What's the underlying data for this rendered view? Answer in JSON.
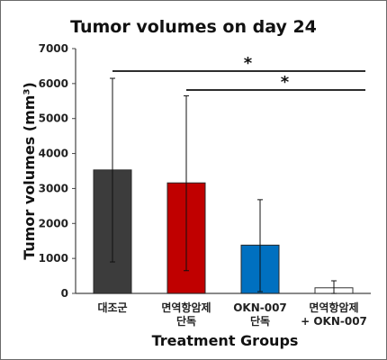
{
  "chart_data": {
    "type": "bar",
    "title": "Tumor volumes on day 24",
    "xlabel": "Treatment Groups",
    "ylabel": "Tumor volumes (mm³)",
    "ylim": [
      0,
      7000
    ],
    "yticks": [
      "0",
      "1000",
      "2000",
      "3000",
      "4000",
      "5000",
      "6000",
      "7000"
    ],
    "categories": [
      [
        "대조군"
      ],
      [
        "면역항암제",
        "단독"
      ],
      [
        "OKN-007",
        "단독"
      ],
      [
        "면역항암제",
        "+ OKN-007"
      ]
    ],
    "values": [
      3530,
      3160,
      1380,
      160
    ],
    "error_upper": [
      6150,
      5650,
      2680,
      360
    ],
    "error_lower": [
      900,
      650,
      50,
      0
    ],
    "colors": [
      "#3c3c3c",
      "#c00000",
      "#0070c0",
      "#ffffff"
    ],
    "significance": [
      {
        "from": 0,
        "to": 3,
        "label": "*"
      },
      {
        "from": 1,
        "to": 3,
        "label": "*"
      }
    ],
    "grid": false,
    "legend": "none"
  }
}
